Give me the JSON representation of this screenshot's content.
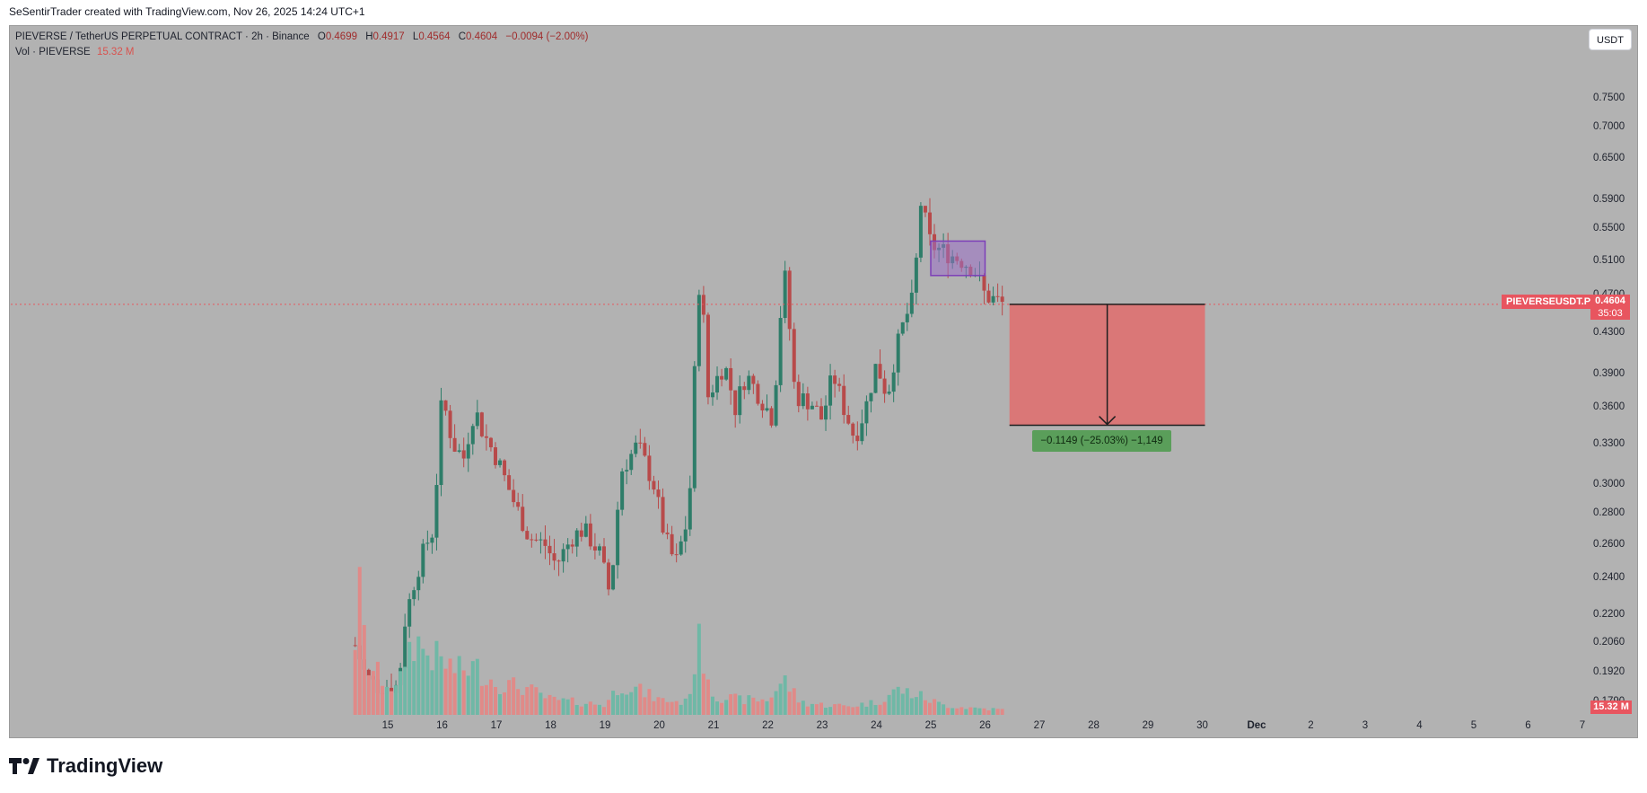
{
  "header": {
    "title": "SeSentirTrader created with TradingView.com, Nov 26, 2025 14:24 UTC+1"
  },
  "legend": {
    "symbol": "PIEVERSE / TetherUS PERPETUAL CONTRACT · 2h · Binance",
    "ohlc": [
      {
        "label": "O",
        "value": "0.4699"
      },
      {
        "label": "H",
        "value": "0.4917"
      },
      {
        "label": "L",
        "value": "0.4564"
      },
      {
        "label": "C",
        "value": "0.4604"
      }
    ],
    "change": "−0.0094 (−2.00%)",
    "volume_label": "Vol · PIEVERSE",
    "volume_value": "15.32 M"
  },
  "currency_button": "USDT",
  "price_badge": {
    "symbol": "PIEVERSEUSDT.P",
    "price": "0.4604",
    "countdown": "35:03"
  },
  "volume_badge": "15.32 M",
  "brand": "TradingView",
  "colors": {
    "up": "#2e7d69",
    "down": "#b84a4a",
    "vol_up": "#6fb8a6",
    "vol_down": "#e08a88",
    "box": "#9b6fc7",
    "short_zone": "#e06c6c",
    "last_price_line": "#e8555f",
    "target": "#5a9e5a"
  },
  "chart_data": {
    "type": "candlestick",
    "interval": "2h",
    "scale": "log",
    "y_ticks": [
      "0.7500",
      "0.7000",
      "0.6500",
      "0.5900",
      "0.5500",
      "0.5100",
      "0.4700",
      "0.4300",
      "0.3900",
      "0.3600",
      "0.3300",
      "0.3000",
      "0.2800",
      "0.2600",
      "0.2400",
      "0.2200",
      "0.2060",
      "0.1920",
      "0.1790"
    ],
    "x_ticks": [
      {
        "label": "15"
      },
      {
        "label": "16"
      },
      {
        "label": "17"
      },
      {
        "label": "18"
      },
      {
        "label": "19"
      },
      {
        "label": "20"
      },
      {
        "label": "21"
      },
      {
        "label": "22"
      },
      {
        "label": "23"
      },
      {
        "label": "24"
      },
      {
        "label": "25"
      },
      {
        "label": "26"
      },
      {
        "label": "27"
      },
      {
        "label": "28"
      },
      {
        "label": "29"
      },
      {
        "label": "30"
      },
      {
        "label": "Dec",
        "bold": true
      },
      {
        "label": "2"
      },
      {
        "label": "3"
      },
      {
        "label": "4"
      },
      {
        "label": "5"
      },
      {
        "label": "6"
      },
      {
        "label": "7"
      }
    ],
    "last_price": 0.4604,
    "short_position": {
      "entry": 0.4604,
      "target": 0.3455,
      "label": "−0.1149 (−25.03%) −1,149"
    },
    "consolidation_box": {
      "top": 0.535,
      "bottom": 0.493
    },
    "close_path": [
      [
        14.4,
        0.205
      ],
      [
        14.6,
        0.19
      ],
      [
        14.8,
        0.186
      ],
      [
        15.2,
        0.186
      ],
      [
        15.3,
        0.215
      ],
      [
        15.5,
        0.24
      ],
      [
        15.7,
        0.26
      ],
      [
        15.85,
        0.27
      ],
      [
        16.0,
        0.37
      ],
      [
        16.2,
        0.33
      ],
      [
        16.4,
        0.32
      ],
      [
        16.6,
        0.36
      ],
      [
        16.75,
        0.34
      ],
      [
        17.0,
        0.32
      ],
      [
        17.3,
        0.29
      ],
      [
        17.6,
        0.265
      ],
      [
        17.9,
        0.26
      ],
      [
        18.1,
        0.248
      ],
      [
        18.4,
        0.265
      ],
      [
        18.6,
        0.27
      ],
      [
        18.9,
        0.255
      ],
      [
        19.1,
        0.23
      ],
      [
        19.3,
        0.31
      ],
      [
        19.6,
        0.33
      ],
      [
        19.9,
        0.3
      ],
      [
        20.1,
        0.265
      ],
      [
        20.3,
        0.248
      ],
      [
        20.55,
        0.28
      ],
      [
        20.75,
        0.5
      ],
      [
        20.9,
        0.37
      ],
      [
        21.2,
        0.4
      ],
      [
        21.4,
        0.36
      ],
      [
        21.6,
        0.39
      ],
      [
        21.85,
        0.37
      ],
      [
        22.1,
        0.35
      ],
      [
        22.3,
        0.5
      ],
      [
        22.5,
        0.37
      ],
      [
        22.8,
        0.365
      ],
      [
        23.0,
        0.35
      ],
      [
        23.2,
        0.39
      ],
      [
        23.4,
        0.36
      ],
      [
        23.6,
        0.335
      ],
      [
        23.8,
        0.36
      ],
      [
        24.0,
        0.4
      ],
      [
        24.2,
        0.37
      ],
      [
        24.35,
        0.41
      ],
      [
        24.5,
        0.44
      ],
      [
        24.7,
        0.47
      ],
      [
        24.8,
        0.59
      ],
      [
        25.0,
        0.53
      ],
      [
        25.3,
        0.52
      ],
      [
        25.6,
        0.51
      ],
      [
        25.8,
        0.5
      ],
      [
        26.0,
        0.47
      ],
      [
        26.2,
        0.465
      ],
      [
        26.35,
        0.4604
      ]
    ],
    "volume_path": [
      [
        14.4,
        0.62
      ],
      [
        14.5,
        1.0
      ],
      [
        14.6,
        0.4
      ],
      [
        15.2,
        0.18
      ],
      [
        15.3,
        0.45
      ],
      [
        15.5,
        0.6
      ],
      [
        15.7,
        0.5
      ],
      [
        16.0,
        0.42
      ],
      [
        16.3,
        0.35
      ],
      [
        16.6,
        0.38
      ],
      [
        17.0,
        0.25
      ],
      [
        17.5,
        0.22
      ],
      [
        18.0,
        0.12
      ],
      [
        18.5,
        0.1
      ],
      [
        19.0,
        0.08
      ],
      [
        19.3,
        0.25
      ],
      [
        19.6,
        0.2
      ],
      [
        20.0,
        0.12
      ],
      [
        20.5,
        0.1
      ],
      [
        20.75,
        0.58
      ],
      [
        21.0,
        0.15
      ],
      [
        21.5,
        0.12
      ],
      [
        22.0,
        0.12
      ],
      [
        22.3,
        0.28
      ],
      [
        22.6,
        0.1
      ],
      [
        23.0,
        0.08
      ],
      [
        23.5,
        0.07
      ],
      [
        24.0,
        0.1
      ],
      [
        24.4,
        0.2
      ],
      [
        24.8,
        0.15
      ],
      [
        25.2,
        0.08
      ],
      [
        25.6,
        0.06
      ],
      [
        26.0,
        0.05
      ],
      [
        26.35,
        0.04
      ]
    ]
  }
}
